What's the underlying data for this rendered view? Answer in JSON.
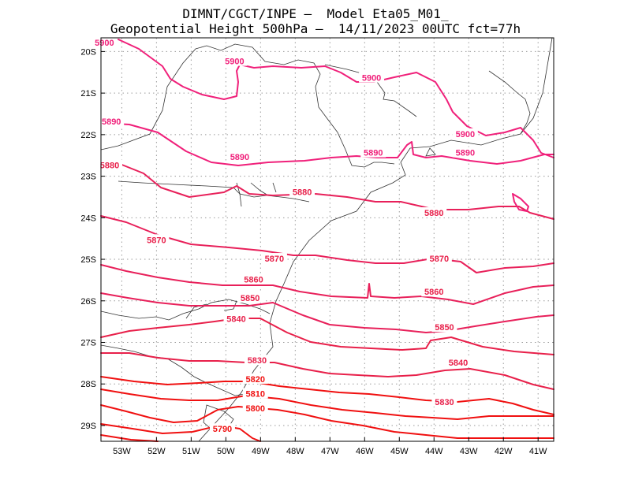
{
  "title": {
    "line1": "DIMNT/CGCT/INPE –  Model Eta05_M01_",
    "line2": "Geopotential Height 500hPa –  14/11/2023 00UTC fct=77h"
  },
  "axes": {
    "lat_labels": [
      "20S",
      "21S",
      "22S",
      "23S",
      "24S",
      "25S",
      "26S",
      "27S",
      "28S",
      "29S"
    ],
    "lon_labels": [
      "53W",
      "52W",
      "51W",
      "50W",
      "49W",
      "48W",
      "47W",
      "46W",
      "45W",
      "44W",
      "43W",
      "42W",
      "41W"
    ]
  },
  "colors": {
    "magenta": "#f0207a",
    "crimson": "#e8204a",
    "red": "#f01010",
    "coast": "#333333",
    "grid": "#9a9a9a"
  },
  "contours": [
    {
      "value": 5900,
      "labels": [
        {
          "text": "5900",
          "lon": -53.5,
          "lat": -19.8
        },
        {
          "text": "5900",
          "lon": -49.75,
          "lat": -20.25
        },
        {
          "text": "5900",
          "lon": -45.8,
          "lat": -20.65
        },
        {
          "text": "5900",
          "lon": -43.1,
          "lat": -22.0
        }
      ]
    },
    {
      "value": 5890,
      "labels": [
        {
          "text": "5890",
          "lon": -53.3,
          "lat": -21.7
        },
        {
          "text": "5890",
          "lon": -49.6,
          "lat": -22.55
        },
        {
          "text": "5890",
          "lon": -45.75,
          "lat": -22.45
        },
        {
          "text": "5890",
          "lon": -43.1,
          "lat": -22.45
        }
      ]
    },
    {
      "value": 5880,
      "labels": [
        {
          "text": "5880",
          "lon": -53.35,
          "lat": -22.75
        },
        {
          "text": "5880",
          "lon": -47.8,
          "lat": -23.4
        },
        {
          "text": "5880",
          "lon": -44.0,
          "lat": -23.9
        }
      ]
    },
    {
      "value": 5870,
      "labels": [
        {
          "text": "5870",
          "lon": -52.0,
          "lat": -24.55
        },
        {
          "text": "5870",
          "lon": -48.6,
          "lat": -25.0
        },
        {
          "text": "5870",
          "lon": -43.85,
          "lat": -25.0
        }
      ]
    },
    {
      "value": 5860,
      "labels": [
        {
          "text": "5860",
          "lon": -49.2,
          "lat": -25.5
        },
        {
          "text": "5860",
          "lon": -44.0,
          "lat": -25.8
        }
      ]
    },
    {
      "value": 5850,
      "labels": [
        {
          "text": "5850",
          "lon": -49.3,
          "lat": -25.95
        },
        {
          "text": "5850",
          "lon": -43.7,
          "lat": -26.65
        }
      ]
    },
    {
      "value": 5840,
      "labels": [
        {
          "text": "5840",
          "lon": -49.7,
          "lat": -26.45
        },
        {
          "text": "5840",
          "lon": -43.3,
          "lat": -27.5
        }
      ]
    },
    {
      "value": 5830,
      "labels": [
        {
          "text": "5830",
          "lon": -49.1,
          "lat": -27.45
        },
        {
          "text": "5830",
          "lon": -43.7,
          "lat": -28.45
        }
      ]
    },
    {
      "value": 5820,
      "labels": [
        {
          "text": "5820",
          "lon": -49.15,
          "lat": -27.9
        }
      ]
    },
    {
      "value": 5810,
      "labels": [
        {
          "text": "5810",
          "lon": -49.15,
          "lat": -28.25
        }
      ]
    },
    {
      "value": 5800,
      "labels": [
        {
          "text": "5800",
          "lon": -49.15,
          "lat": -28.6
        }
      ]
    },
    {
      "value": 5790,
      "labels": [
        {
          "text": "5790",
          "lon": -50.1,
          "lat": -29.1
        }
      ]
    }
  ]
}
